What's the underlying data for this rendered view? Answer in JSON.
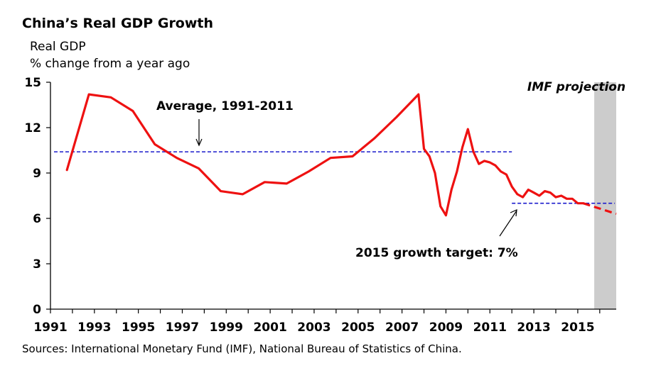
{
  "title": "China’s Real GDP Growth",
  "ylabel_line1": "Real GDP",
  "ylabel_line2": "% change from a year ago",
  "source": "Sources: International Monetary Fund (IMF), National Bureau of Statistics of China.",
  "colors": {
    "series": "#ee1111",
    "reference": "#1a1acc",
    "shade": "#cccccc",
    "axis": "#000000"
  },
  "chart_data": {
    "type": "line",
    "xlim": [
      1991,
      2016.75
    ],
    "ylim": [
      0,
      15
    ],
    "x_tick_labels": [
      "1991",
      "1993",
      "1995",
      "1997",
      "1999",
      "2001",
      "2003",
      "2005",
      "2007",
      "2009",
      "2011",
      "2013",
      "2015"
    ],
    "y_tick_labels": [
      "0",
      "3",
      "6",
      "9",
      "12",
      "15"
    ],
    "grid": false,
    "series": [
      {
        "style": "solid",
        "x": [
          1991.75,
          1992.75,
          1993.75,
          1994.75,
          1995.75,
          1996.75,
          1997.75,
          1998.75,
          1999.75,
          2000.75,
          2001.75,
          2002.75,
          2003.75,
          2004.75,
          2005.75,
          2006.75,
          2007.75,
          2008.0,
          2008.25,
          2008.5,
          2008.75,
          2009.0,
          2009.25,
          2009.5,
          2009.75,
          2010.0,
          2010.25,
          2010.5,
          2010.75,
          2011.0,
          2011.25,
          2011.5,
          2011.75,
          2012.0,
          2012.25,
          2012.5,
          2012.75,
          2013.0,
          2013.25,
          2013.5,
          2013.75,
          2014.0,
          2014.25,
          2014.5,
          2014.75,
          2015.0,
          2015.25
        ],
        "y": [
          9.2,
          14.2,
          14.0,
          13.1,
          10.9,
          10.0,
          9.3,
          7.8,
          7.6,
          8.4,
          8.3,
          9.1,
          10.0,
          10.1,
          11.3,
          12.7,
          14.2,
          10.6,
          10.1,
          9.0,
          6.8,
          6.2,
          7.9,
          9.1,
          10.7,
          11.9,
          10.4,
          9.6,
          9.8,
          9.7,
          9.5,
          9.1,
          8.9,
          8.1,
          7.6,
          7.4,
          7.9,
          7.7,
          7.5,
          7.8,
          7.7,
          7.4,
          7.5,
          7.3,
          7.3,
          7.0,
          7.0
        ]
      },
      {
        "name": "IMF projection",
        "style": "dashed",
        "x": [
          2015.25,
          2016.75
        ],
        "y": [
          7.0,
          6.3
        ]
      }
    ],
    "reference_lines": [
      {
        "label": "Average, 1991-2011",
        "y": 10.4,
        "x_start": 1991.0,
        "x_end": 2012.0
      },
      {
        "label": "2015 growth target: 7%",
        "y": 7.0,
        "x_start": 2012.0,
        "x_end": 2016.75
      }
    ],
    "shaded_region": {
      "label": "IMF projection",
      "x_start": 2015.75,
      "x_end": 2016.75
    }
  }
}
